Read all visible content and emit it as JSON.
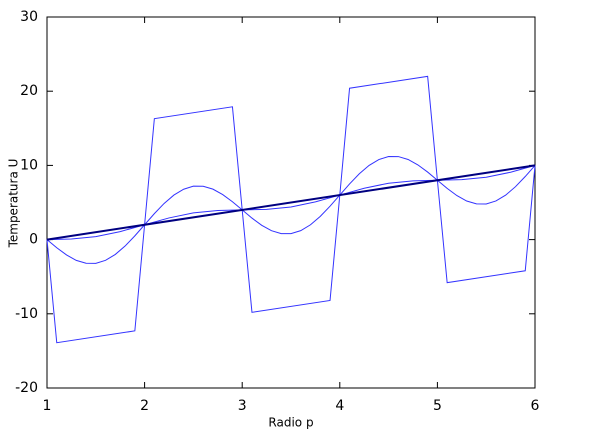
{
  "chart_data": {
    "type": "line",
    "xlabel": "Radio p",
    "ylabel": "Temperatura U",
    "xlim": [
      1,
      6
    ],
    "ylim": [
      -20,
      30
    ],
    "xticks": [
      1,
      2,
      3,
      4,
      5,
      6
    ],
    "yticks": [
      -20,
      -10,
      0,
      10,
      20,
      30
    ],
    "grid": false,
    "series": [
      {
        "color": "#3333ff",
        "width": 1,
        "x": [
          1,
          1.1,
          1.9,
          2,
          2.1,
          2.9,
          3,
          3.1,
          3.9,
          4,
          4.1,
          4.9,
          5,
          5.1,
          5.9,
          6
        ],
        "values": [
          0,
          -13.9,
          -12.3,
          2,
          16.3,
          17.9,
          4,
          -9.8,
          -8.2,
          6,
          20.4,
          22,
          8,
          -5.8,
          -4.2,
          10
        ]
      },
      {
        "color": "#3333ff",
        "width": 1,
        "x": [
          1,
          1.1,
          1.2,
          1.3,
          1.4,
          1.5,
          1.6,
          1.7,
          1.8,
          1.9,
          2,
          2.1,
          2.2,
          2.3,
          2.4,
          2.5,
          2.6,
          2.7,
          2.8,
          2.9,
          3,
          3.1,
          3.2,
          3.3,
          3.4,
          3.5,
          3.6,
          3.7,
          3.8,
          3.9,
          4,
          4.1,
          4.2,
          4.3,
          4.4,
          4.5,
          4.6,
          4.7,
          4.8,
          4.9,
          5,
          5.1,
          5.2,
          5.3,
          5.4,
          5.5,
          5.6,
          5.7,
          5.8,
          5.9,
          6
        ],
        "values": [
          0,
          -1.1,
          -2.07,
          -2.8,
          -3.19,
          -3.2,
          -2.79,
          -2.0,
          -0.87,
          0.5,
          2.0,
          3.5,
          4.87,
          6.0,
          6.79,
          7.2,
          7.19,
          6.8,
          6.07,
          5.1,
          4.0,
          2.9,
          1.93,
          1.2,
          0.81,
          0.8,
          1.21,
          2.0,
          3.13,
          4.5,
          6.0,
          7.5,
          8.87,
          10.0,
          10.79,
          11.2,
          11.19,
          10.8,
          10.07,
          9.1,
          8.0,
          6.9,
          5.93,
          5.2,
          4.81,
          4.8,
          5.21,
          6.0,
          7.13,
          8.5,
          10.0
        ]
      },
      {
        "color": "#3333ff",
        "width": 1,
        "x": [
          1,
          1.25,
          1.5,
          1.75,
          2,
          2.25,
          2.5,
          2.75,
          3,
          3.25,
          3.5,
          3.75,
          4,
          4.25,
          4.5,
          4.75,
          5,
          5.25,
          5.5,
          5.75,
          6
        ],
        "values": [
          0,
          0.08,
          0.4,
          1.08,
          2.0,
          2.92,
          3.6,
          3.92,
          4.0,
          4.08,
          4.4,
          5.08,
          6.0,
          6.92,
          7.6,
          7.92,
          8.0,
          8.08,
          8.4,
          9.08,
          10.0
        ]
      },
      {
        "color": "#000080",
        "width": 2,
        "x": [
          1,
          6
        ],
        "values": [
          0,
          10
        ]
      }
    ]
  }
}
